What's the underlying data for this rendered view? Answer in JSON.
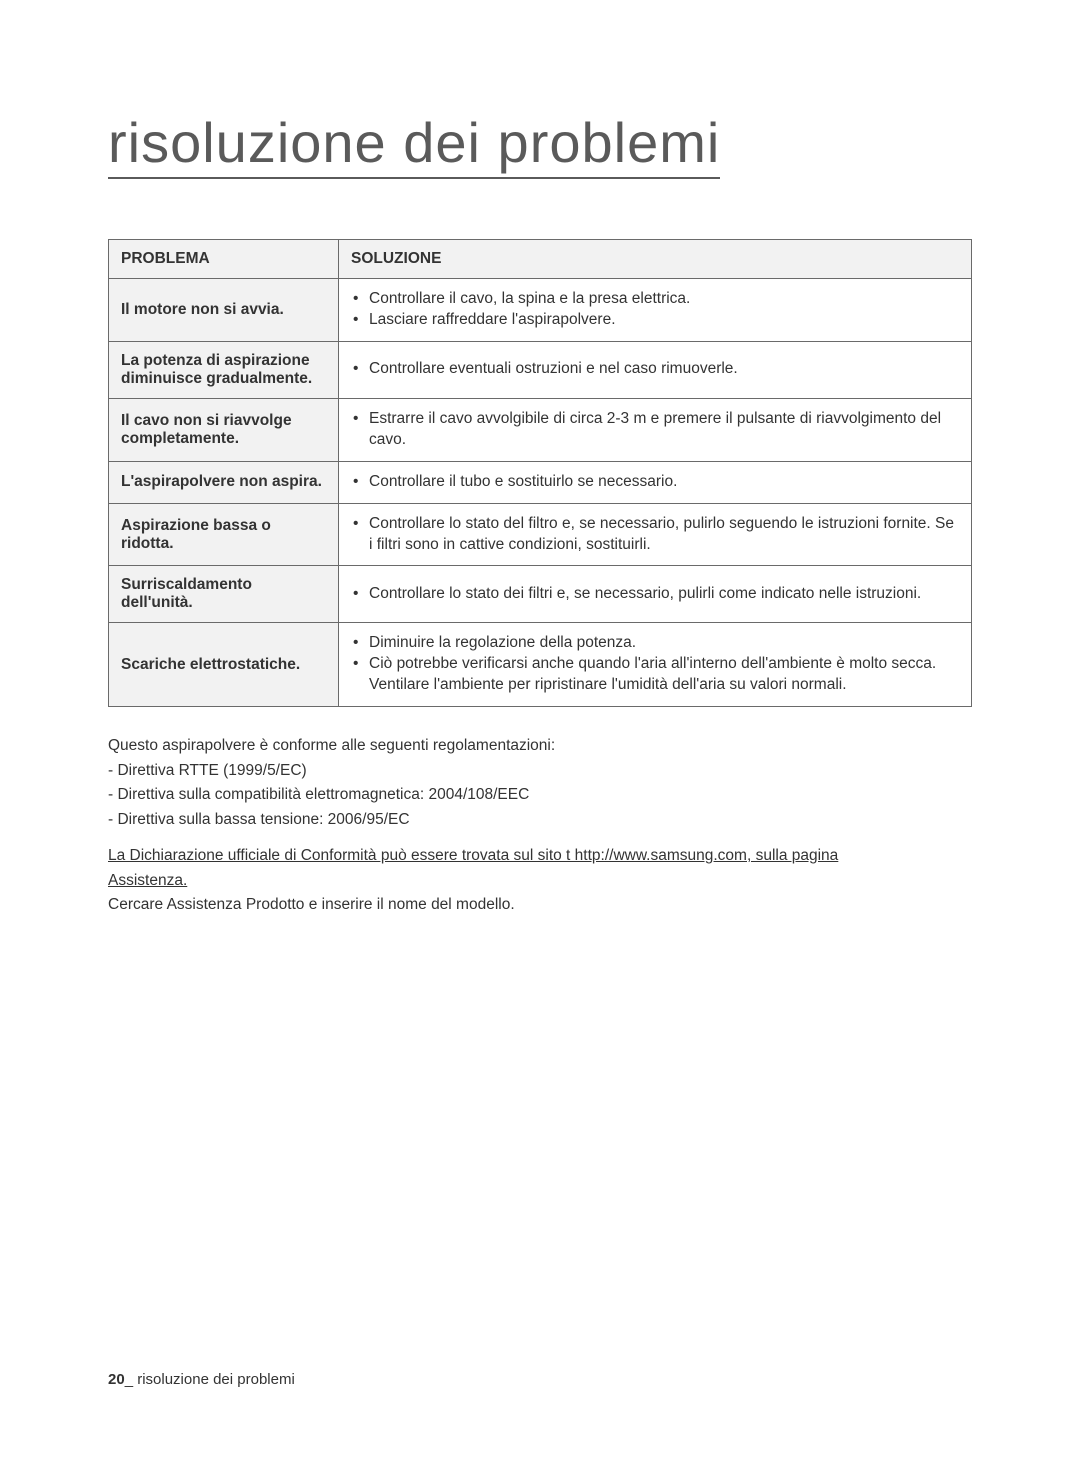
{
  "title": "risoluzione dei problemi",
  "table": {
    "head_problem": "PROBLEMA",
    "head_solution": "SOLUZIONE",
    "rows": [
      {
        "problem": "Il motore non si avvia.",
        "solutions": [
          "Controllare il cavo, la spina e la presa elettrica.",
          "Lasciare raffreddare l'aspirapolvere."
        ]
      },
      {
        "problem": "La potenza di aspirazione diminuisce gradualmente.",
        "solutions": [
          "Controllare eventuali ostruzioni e nel caso rimuoverle."
        ]
      },
      {
        "problem": "Il cavo non si riavvolge completamente.",
        "solutions": [
          "Estrarre il cavo avvolgibile di circa 2-3 m e premere il pulsante di riavvolgimento del cavo."
        ]
      },
      {
        "problem": "L'aspirapolvere non aspira.",
        "solutions": [
          "Controllare il tubo e sostituirlo se necessario."
        ]
      },
      {
        "problem": "Aspirazione bassa o ridotta.",
        "solutions": [
          "Controllare lo stato del filtro e, se necessario, pulirlo seguendo le istruzioni fornite. Se i filtri sono in cattive condizioni, sostituirli."
        ]
      },
      {
        "problem": "Surriscaldamento dell'unità.",
        "solutions": [
          "Controllare lo stato dei filtri e, se necessario, pulirli come indicato nelle istruzioni."
        ]
      },
      {
        "problem": "Scariche elettrostatiche.",
        "solutions": [
          "Diminuire la regolazione della potenza.",
          "Ciò potrebbe verificarsi anche quando l'aria all'interno dell'ambiente è molto secca.\nVentilare l'ambiente per ripristinare l'umidità dell'aria su valori normali."
        ]
      }
    ]
  },
  "body": {
    "intro": "Questo aspirapolvere è conforme alle seguenti regolamentazioni:",
    "line1": "- Direttiva RTTE (1999/5/EC)",
    "line2": "- Direttiva sulla compatibilità elettromagnetica: 2004/108/EEC",
    "line3": "- Direttiva sulla bassa tensione: 2006/95/EC",
    "declaration1": "La Dichiarazione ufficiale di Conformità può essere trovata sul sito t http://www.samsung.com, sulla pagina",
    "declaration2": "Assistenza.",
    "search": "Cercare Assistenza Prodotto e inserire il nome del modello."
  },
  "footer": {
    "page_number": "20",
    "separator": "_ ",
    "section": "risoluzione dei problemi"
  }
}
